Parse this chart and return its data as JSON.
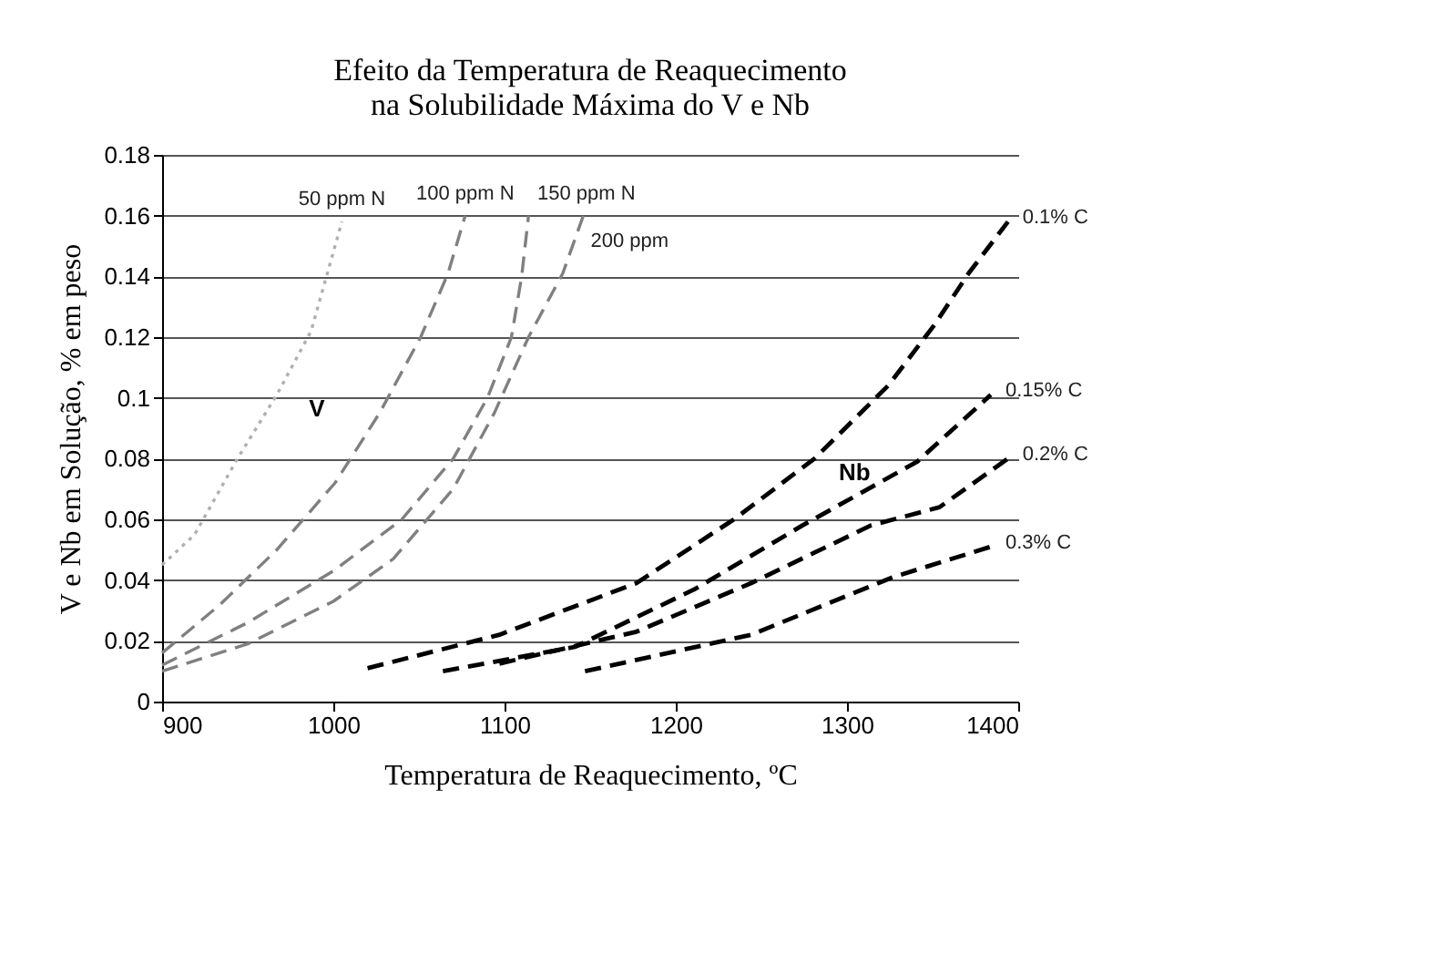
{
  "chart_data": {
    "type": "line",
    "title": [
      "Efeito da Temperatura de  Reaquecimento",
      "na Solubilidade Máxima do V e Nb"
    ],
    "xlabel": "Temperatura de Reaquecimento, ºC",
    "ylabel": "V e Nb em Solução, % em peso",
    "xlim": [
      900,
      1400
    ],
    "xticks": [
      900,
      1000,
      1100,
      1200,
      1300,
      1400
    ],
    "ylim": [
      0,
      0.18
    ],
    "yticks": [
      0,
      0.02,
      0.04,
      0.06,
      0.08,
      0.1,
      0.12,
      0.14,
      0.16,
      0.18
    ],
    "grid": "y",
    "legend": false,
    "marker": "none",
    "series": [
      {
        "name": "50 ppm N",
        "color": "#b0b0b0",
        "line_style": "dotted",
        "x": [
          900,
          919,
          944,
          967,
          987,
          1005
        ],
        "values": [
          0.045,
          0.055,
          0.08,
          0.101,
          0.122,
          0.158
        ]
      },
      {
        "name": "100 ppm N",
        "color": "#808080",
        "line_style": "dashed",
        "x": [
          900,
          934,
          967,
          1001,
          1027,
          1051,
          1067,
          1077
        ],
        "values": [
          0.016,
          0.032,
          0.05,
          0.072,
          0.095,
          0.12,
          0.141,
          0.16
        ]
      },
      {
        "name": "150 ppm N",
        "color": "#808080",
        "line_style": "dashed",
        "x": [
          900,
          950,
          1000,
          1040,
          1070,
          1090,
          1104,
          1110,
          1114
        ],
        "values": [
          0.012,
          0.026,
          0.043,
          0.06,
          0.08,
          0.1,
          0.12,
          0.14,
          0.16
        ]
      },
      {
        "name": "200 ppm",
        "color": "#808080",
        "line_style": "dashed",
        "x": [
          900,
          950,
          1000,
          1035,
          1070,
          1094,
          1114,
          1134,
          1146
        ],
        "values": [
          0.01,
          0.019,
          0.033,
          0.047,
          0.07,
          0.095,
          0.12,
          0.141,
          0.16
        ]
      },
      {
        "name": "0.1% C",
        "color": "#000000",
        "line_style": "dashed",
        "x": [
          1020,
          1097,
          1177,
          1234,
          1281,
          1324,
          1351,
          1371,
          1394
        ],
        "values": [
          0.011,
          0.022,
          0.039,
          0.06,
          0.08,
          0.104,
          0.124,
          0.141,
          0.158
        ]
      },
      {
        "name": "0.15% C",
        "color": "#000000",
        "line_style": "dashed",
        "x": [
          1064,
          1141,
          1211,
          1274,
          1341,
          1384
        ],
        "values": [
          0.01,
          0.018,
          0.037,
          0.058,
          0.079,
          0.101
        ]
      },
      {
        "name": "0.2% C",
        "color": "#000000",
        "line_style": "dashed",
        "x": [
          1097,
          1177,
          1244,
          1314,
          1354,
          1394
        ],
        "values": [
          0.0125,
          0.023,
          0.039,
          0.058,
          0.064,
          0.08
        ]
      },
      {
        "name": "0.3% C",
        "color": "#000000",
        "line_style": "dashed",
        "x": [
          1147,
          1244,
          1327,
          1384
        ],
        "values": [
          0.01,
          0.022,
          0.041,
          0.051
        ]
      }
    ],
    "annotations": [
      "V",
      "Nb"
    ]
  }
}
